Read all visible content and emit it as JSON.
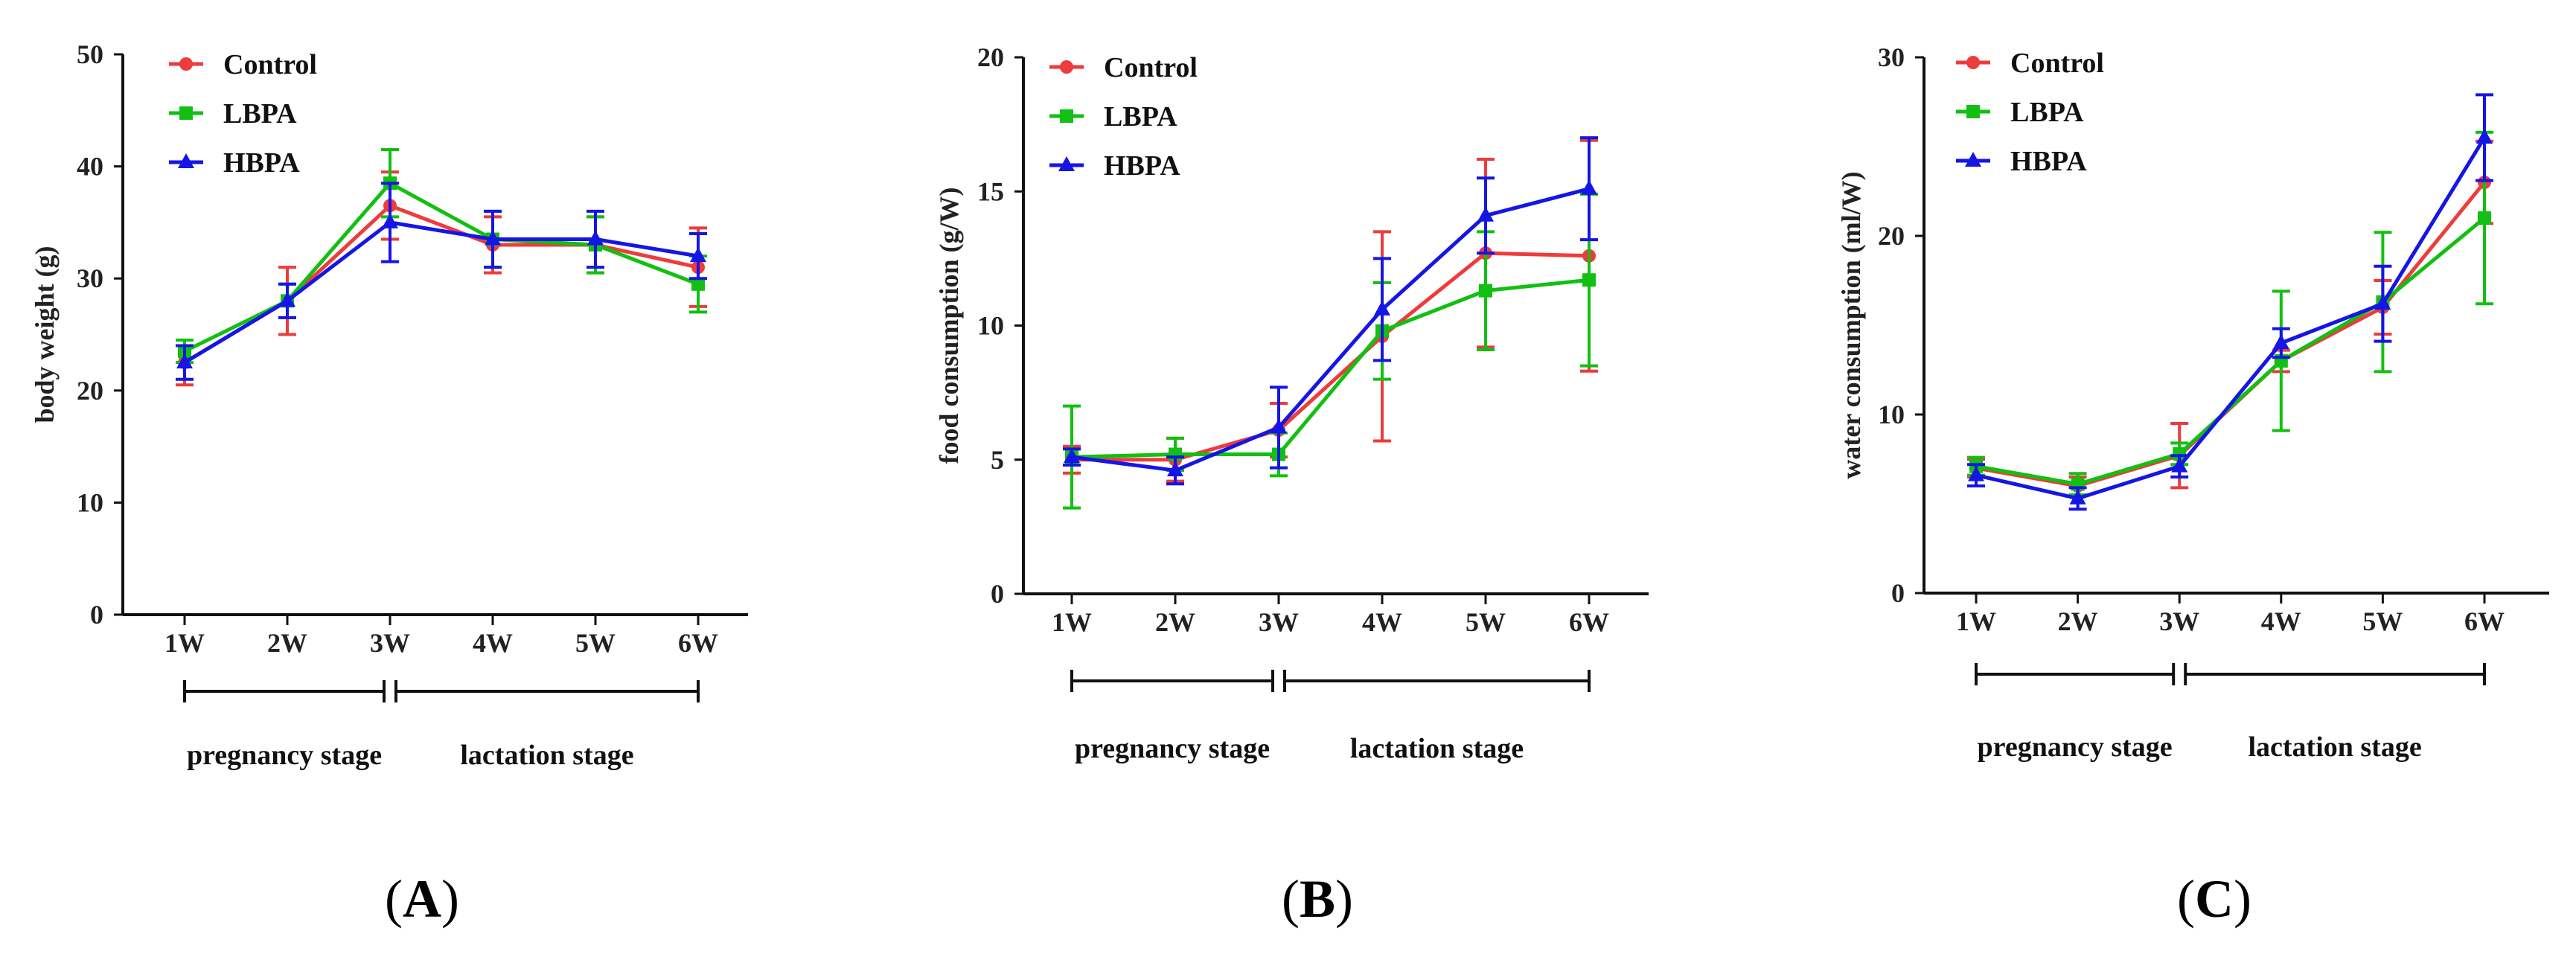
{
  "colors": {
    "Control": "#ee3b3b",
    "LBPA": "#11c011",
    "HBPA": "#1515e6",
    "axis": "#111111"
  },
  "chart_data": [
    {
      "type": "line",
      "panel_label": "A",
      "ylabel": "body weight (g)",
      "ylim": [
        0,
        50
      ],
      "yticks": [
        "0",
        "10",
        "20",
        "30",
        "40",
        "50"
      ],
      "categories": [
        "1W",
        "2W",
        "3W",
        "4W",
        "5W",
        "6W"
      ],
      "stages": [
        {
          "label": "pregnancy stage",
          "from": 0,
          "to": 2
        },
        {
          "label": "lactation stage",
          "from": 2,
          "to": 5
        }
      ],
      "series": [
        {
          "name": "Control",
          "marker": "circle",
          "values": [
            22.5,
            28,
            36.5,
            33,
            33,
            31
          ],
          "errors": [
            2,
            3,
            3,
            2.5,
            2.5,
            3.5
          ]
        },
        {
          "name": "LBPA",
          "marker": "square",
          "values": [
            23.5,
            28,
            38.5,
            33.5,
            33,
            29.5
          ],
          "errors": [
            1,
            1.5,
            3,
            2.5,
            2.5,
            2.5
          ]
        },
        {
          "name": "HBPA",
          "marker": "triangle",
          "values": [
            22.5,
            28,
            35,
            33.5,
            33.5,
            32
          ],
          "errors": [
            1.5,
            1.5,
            3.5,
            2.5,
            2.5,
            2
          ]
        }
      ]
    },
    {
      "type": "line",
      "panel_label": "B",
      "ylabel": "food consumption (g/W)",
      "ylim": [
        0,
        20
      ],
      "yticks": [
        "0",
        "5",
        "10",
        "15",
        "20"
      ],
      "categories": [
        "1W",
        "2W",
        "3W",
        "4W",
        "5W",
        "6W"
      ],
      "stages": [
        {
          "label": "pregnancy stage",
          "from": 0,
          "to": 2
        },
        {
          "label": "lactation stage",
          "from": 2,
          "to": 5
        }
      ],
      "series": [
        {
          "name": "Control",
          "marker": "circle",
          "values": [
            5,
            5,
            6.1,
            9.6,
            12.7,
            12.6
          ],
          "errors": [
            0.5,
            0.8,
            1,
            3.9,
            3.5,
            4.3
          ]
        },
        {
          "name": "LBPA",
          "marker": "square",
          "values": [
            5.1,
            5.2,
            5.2,
            9.8,
            11.3,
            11.7
          ],
          "errors": [
            1.9,
            0.6,
            0.8,
            1.8,
            2.2,
            3.2
          ]
        },
        {
          "name": "HBPA",
          "marker": "triangle",
          "values": [
            5.1,
            4.6,
            6.2,
            10.6,
            14.1,
            15.1
          ],
          "errors": [
            0.3,
            0.5,
            1.5,
            1.9,
            1.4,
            1.9
          ]
        }
      ]
    },
    {
      "type": "line",
      "panel_label": "C",
      "ylabel": "water consumption (ml/W)",
      "ylim": [
        0,
        30
      ],
      "yticks": [
        "0",
        "10",
        "20",
        "30"
      ],
      "categories": [
        "1W",
        "2W",
        "3W",
        "4W",
        "5W",
        "6W"
      ],
      "stages": [
        {
          "label": "pregnancy stage",
          "from": 0,
          "to": 2
        },
        {
          "label": "lactation stage",
          "from": 2,
          "to": 5
        }
      ],
      "series": [
        {
          "name": "Control",
          "marker": "circle",
          "values": [
            7,
            6,
            7.7,
            13,
            16,
            23
          ],
          "errors": [
            0.5,
            0.5,
            1.8,
            0.6,
            1.5,
            2.3
          ]
        },
        {
          "name": "LBPA",
          "marker": "square",
          "values": [
            7.1,
            6.1,
            7.8,
            13,
            16.3,
            21
          ],
          "errors": [
            0.5,
            0.6,
            0.6,
            3.9,
            3.9,
            4.8
          ]
        },
        {
          "name": "HBPA",
          "marker": "triangle",
          "values": [
            6.6,
            5.3,
            7.1,
            14,
            16.2,
            25.5
          ],
          "errors": [
            0.6,
            0.6,
            0.6,
            0.8,
            2.1,
            2.4
          ]
        }
      ]
    }
  ]
}
